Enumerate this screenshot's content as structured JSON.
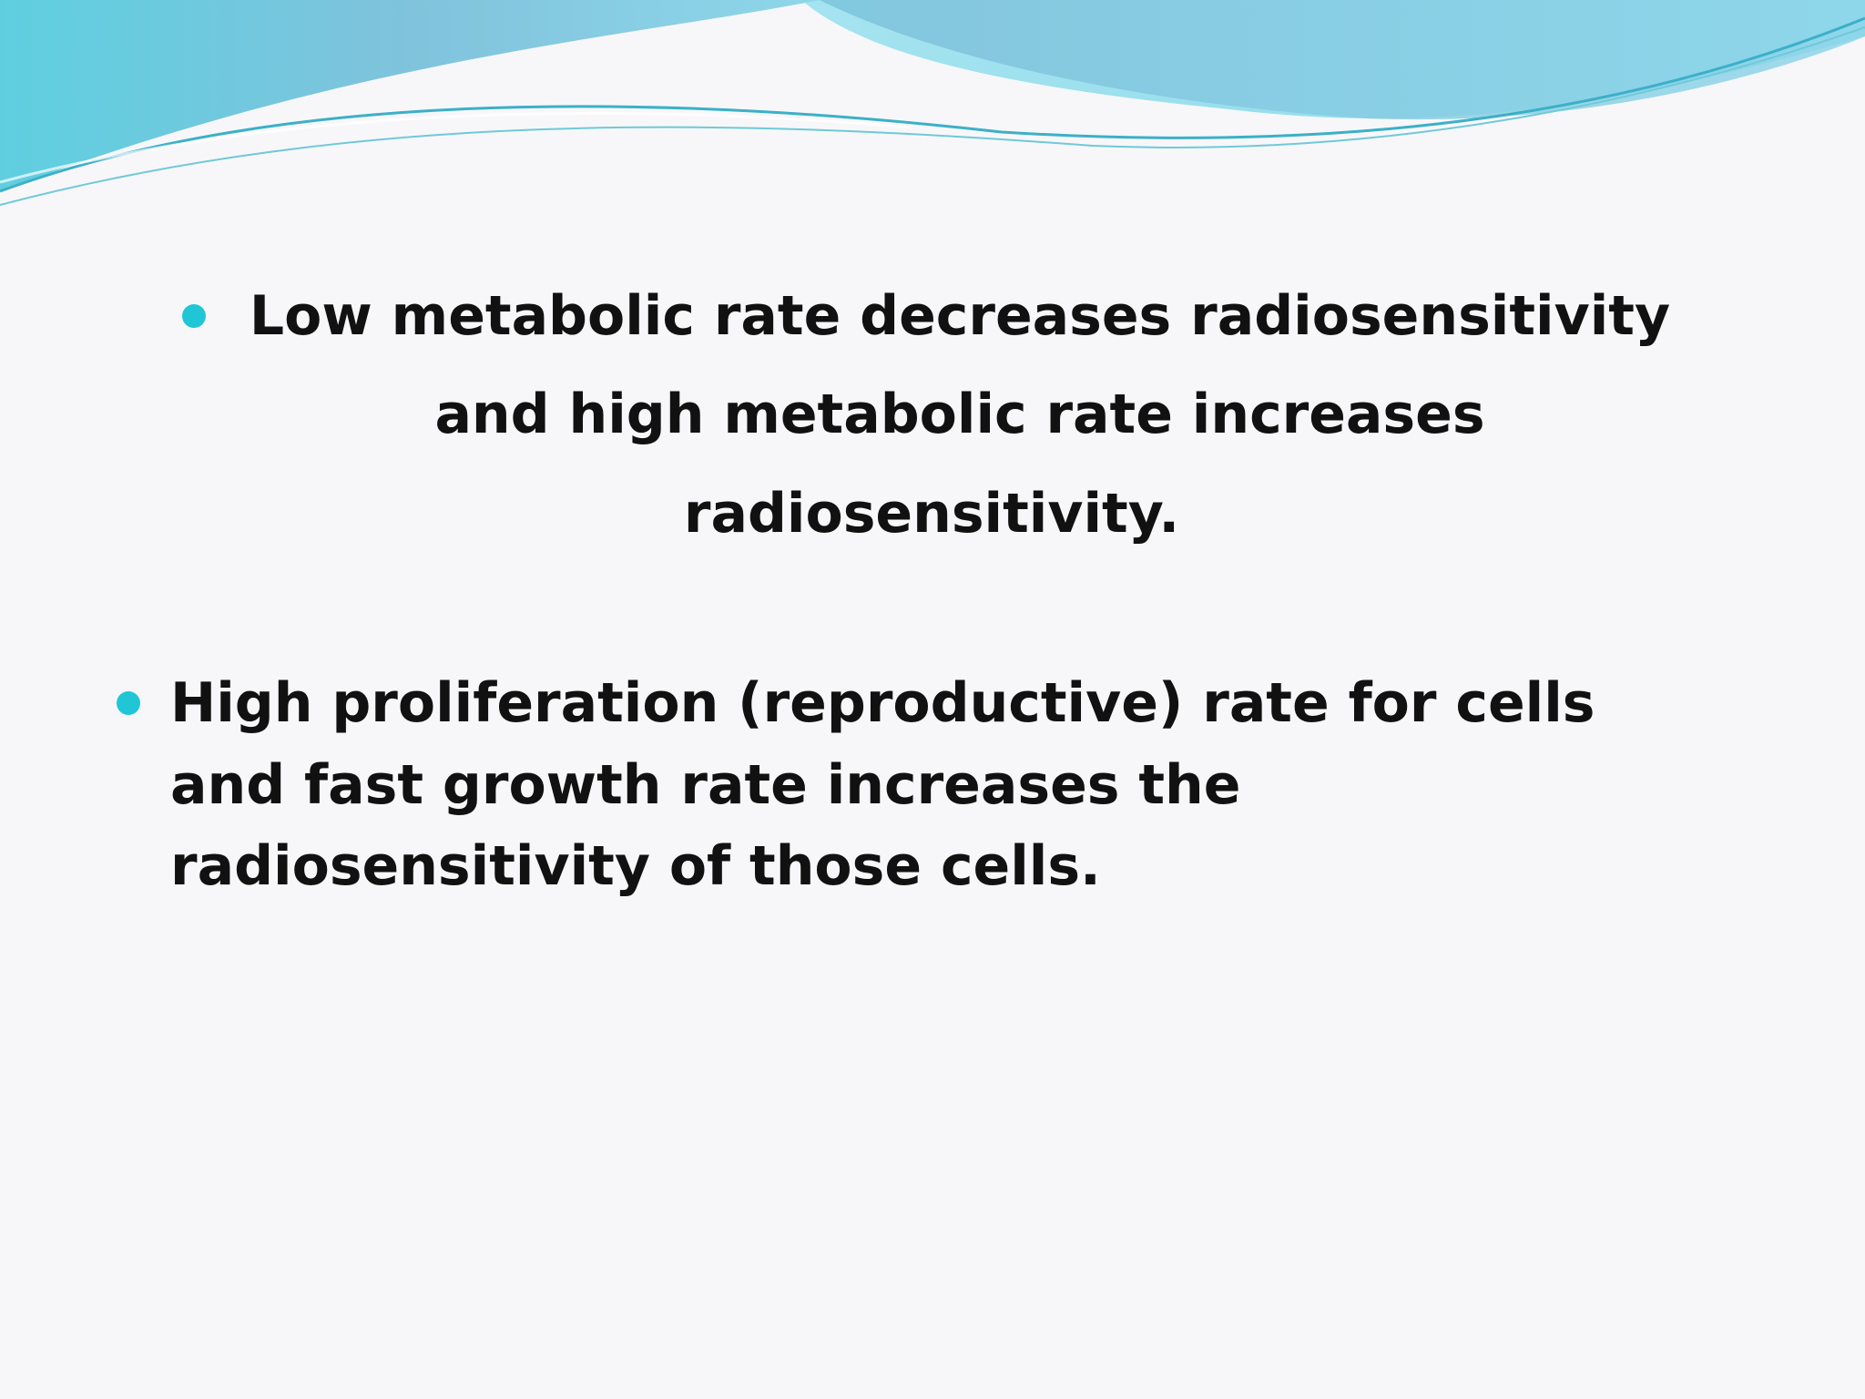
{
  "slide": {
    "bullets": [
      {
        "lines": [
          "Low metabolic rate decreases radiosensitivity",
          "and high metabolic rate increases",
          "radiosensitivity."
        ]
      },
      {
        "lines": [
          "High proliferation (reproductive) rate for cells",
          "and fast growth rate increases the",
          "radiosensitivity of those cells."
        ]
      }
    ]
  }
}
